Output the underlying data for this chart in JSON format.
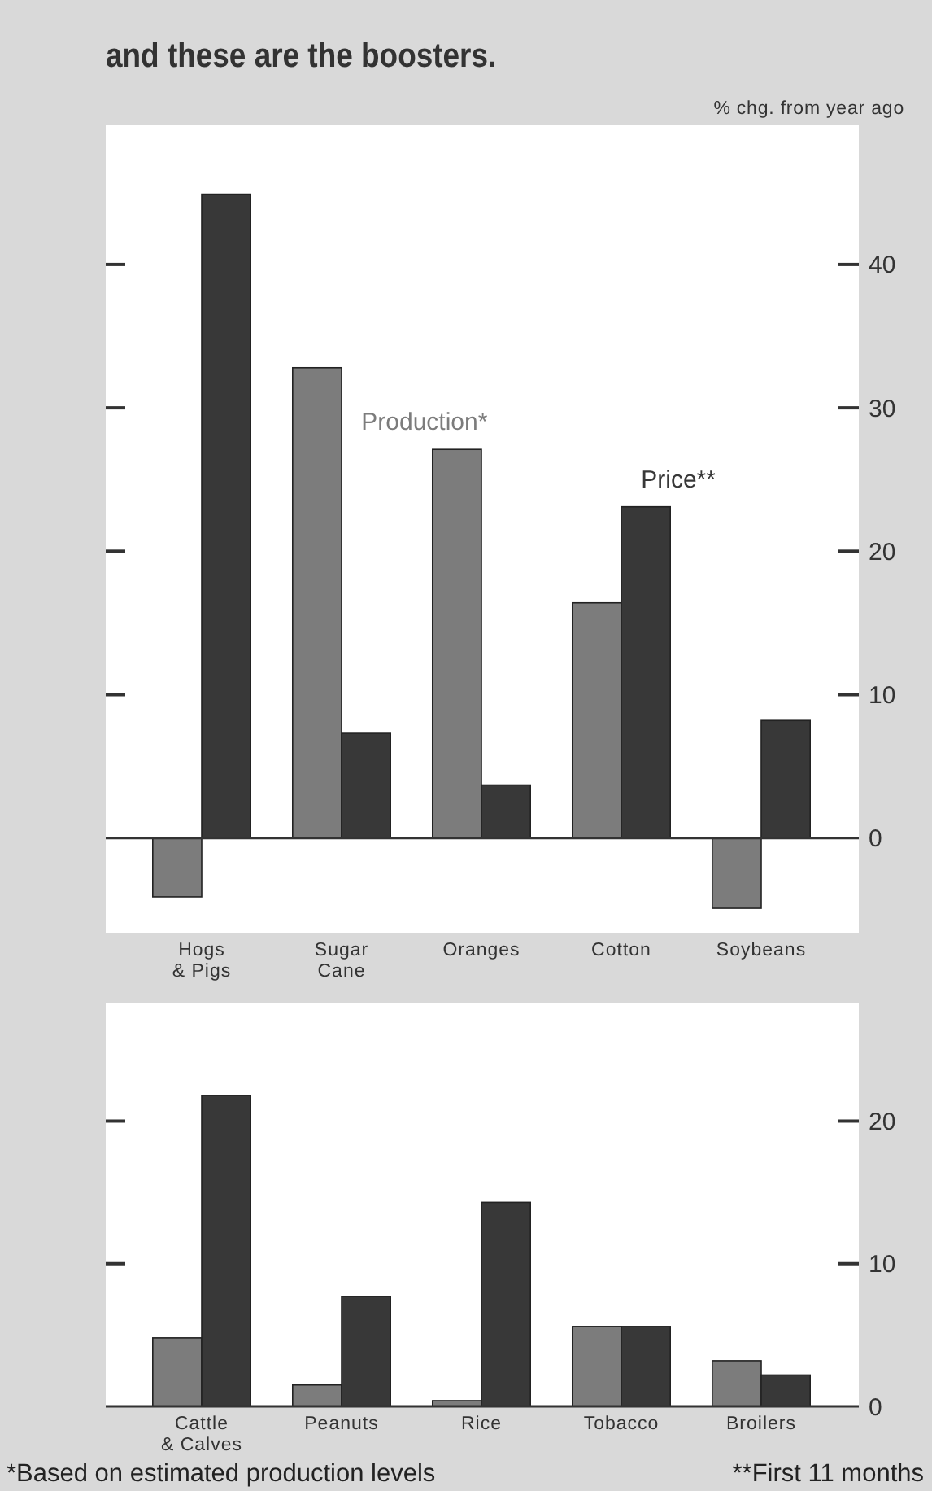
{
  "chart_data": [
    {
      "type": "bar",
      "title": "and these are the boosters.",
      "ylabel": "% chg. from year ago",
      "categories": [
        "Hogs\n& Pigs",
        "Sugar\nCane",
        "Oranges",
        "Cotton",
        "Soybeans"
      ],
      "series": [
        {
          "name": "Production*",
          "color": "#7c7c7c",
          "values": [
            -4.1,
            32.8,
            27.1,
            16.4,
            -4.9
          ]
        },
        {
          "name": "Price**",
          "color": "#383838",
          "values": [
            44.9,
            7.3,
            3.7,
            23.1,
            8.2
          ]
        }
      ],
      "ylim": [
        -6.6,
        49.7
      ],
      "yticks": [
        0,
        10,
        20,
        30,
        40
      ]
    },
    {
      "type": "bar",
      "categories": [
        "Cattle\n& Calves",
        "Peanuts",
        "Rice",
        "Tobacco",
        "Broilers"
      ],
      "series": [
        {
          "color": "#7c7c7c",
          "values": [
            4.8,
            1.5,
            0.4,
            5.6,
            3.2
          ]
        },
        {
          "color": "#383838",
          "values": [
            21.8,
            7.7,
            14.3,
            5.6,
            2.2
          ]
        }
      ],
      "ylim": [
        0,
        28.3
      ],
      "yticks": [
        0,
        10,
        20
      ],
      "annotations": [
        "*Based on estimated production levels",
        "**First 11 months"
      ]
    }
  ]
}
